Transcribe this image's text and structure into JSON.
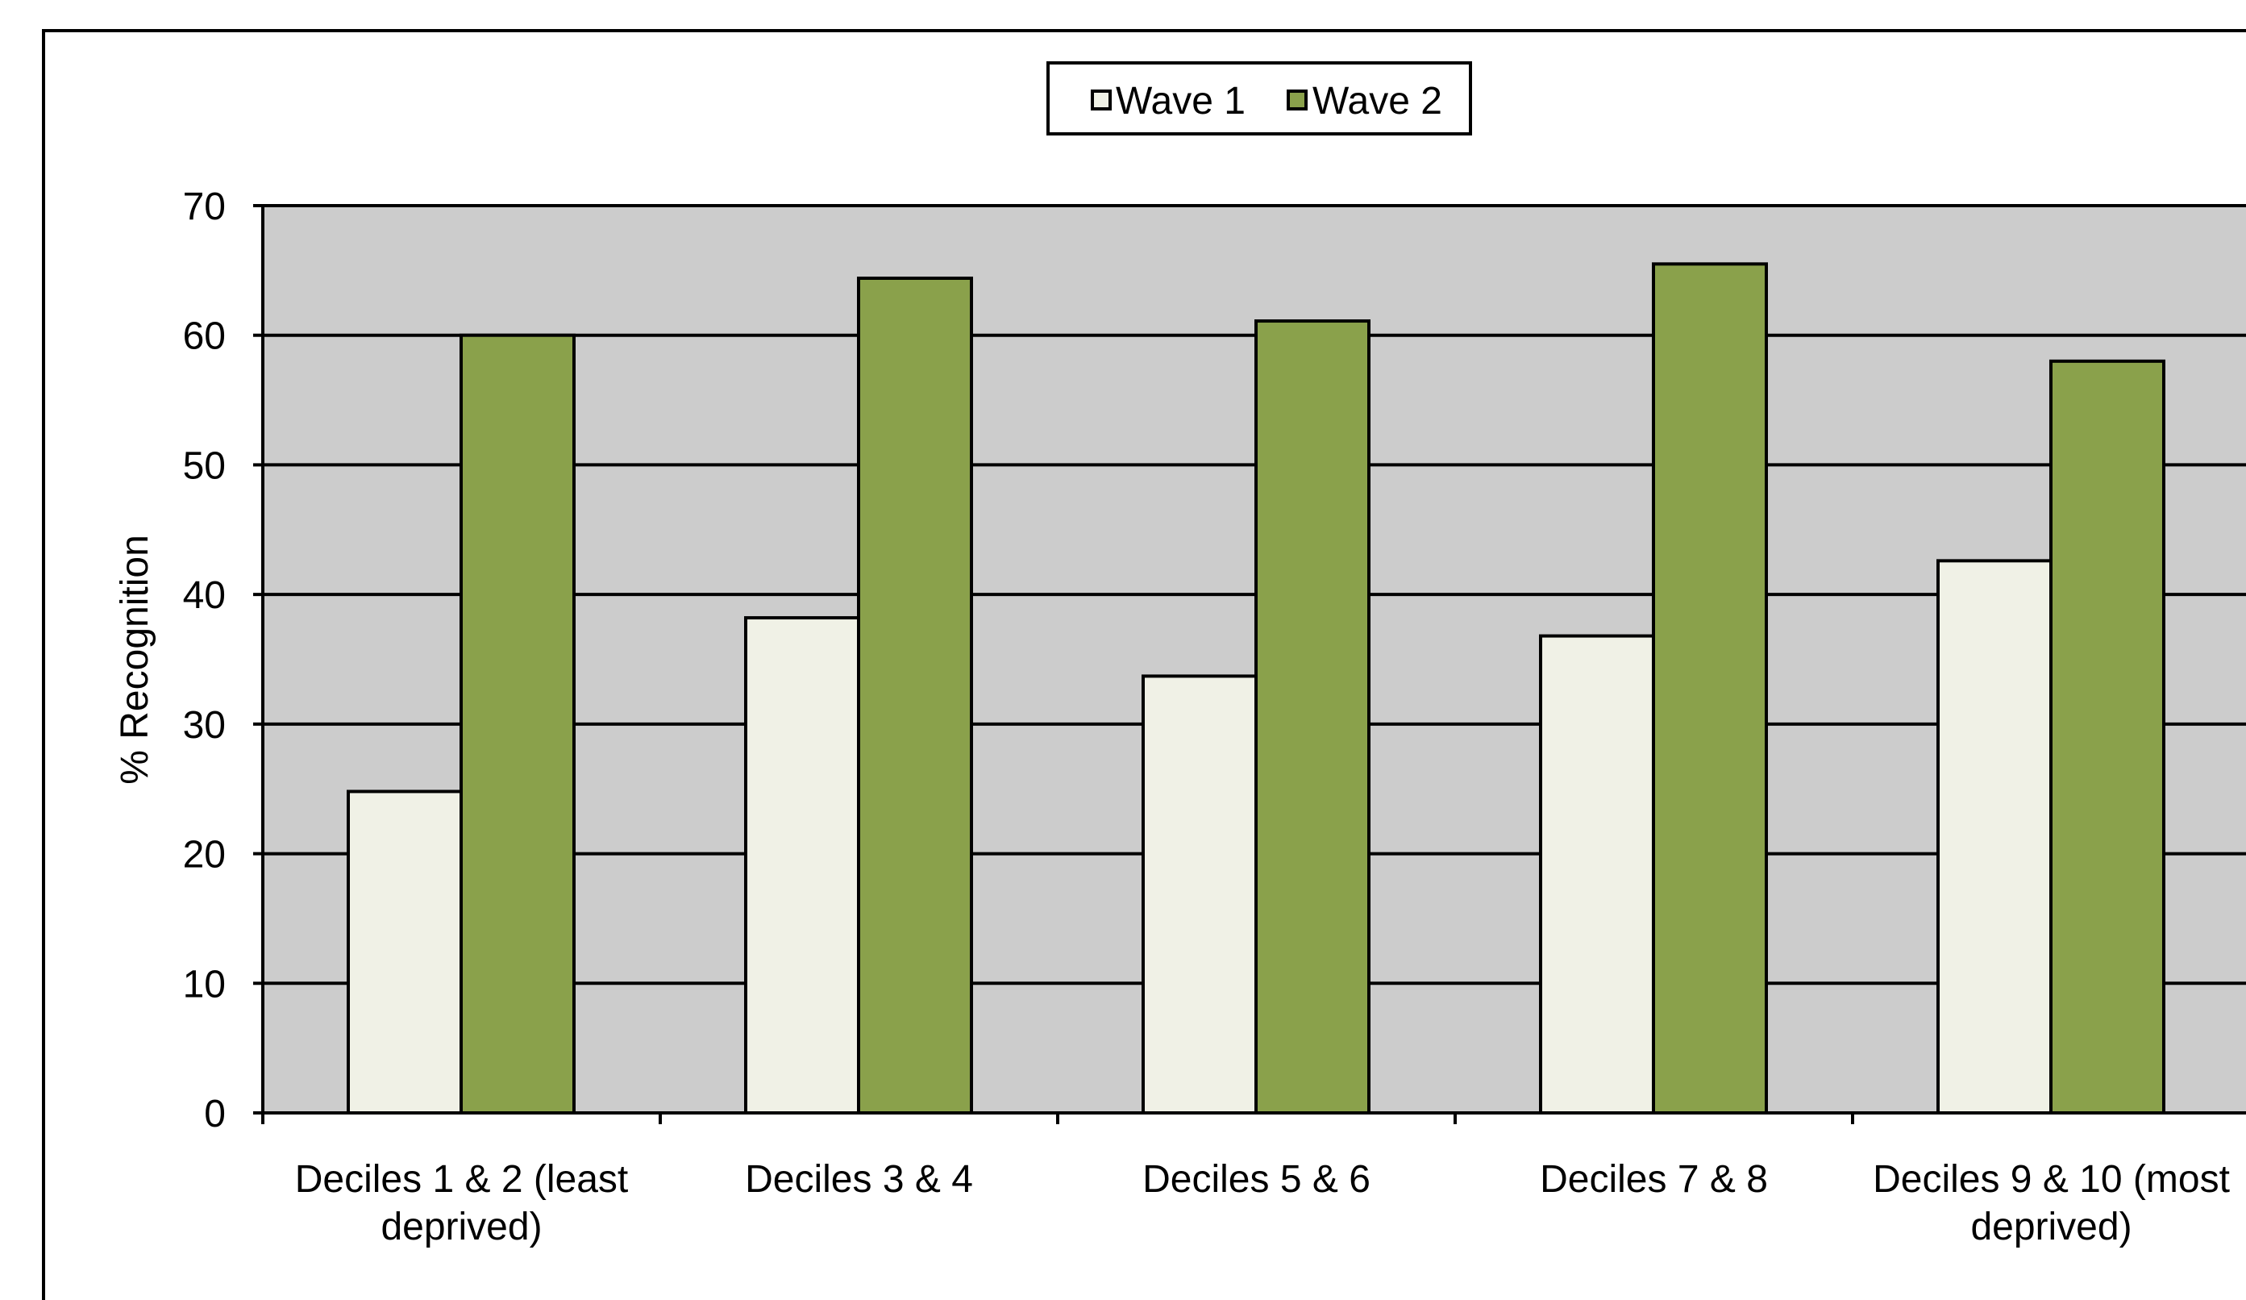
{
  "chart_data": {
    "type": "bar",
    "categories": [
      "Deciles 1 & 2 (least deprived)",
      "Deciles 3 & 4",
      "Deciles 5 & 6",
      "Deciles 7 & 8",
      "Deciles 9 & 10 (most deprived)"
    ],
    "category_label_lines": [
      [
        "Deciles 1 & 2 (least",
        "deprived)"
      ],
      [
        "Deciles 3 & 4"
      ],
      [
        "Deciles 5 & 6"
      ],
      [
        "Deciles 7 & 8"
      ],
      [
        "Deciles 9 & 10 (most",
        "deprived)"
      ]
    ],
    "series": [
      {
        "name": "Wave 1",
        "values": [
          24.8,
          38.2,
          33.7,
          36.8,
          42.6
        ],
        "color": "#F0F1E6"
      },
      {
        "name": "Wave 2",
        "values": [
          60.0,
          64.4,
          61.1,
          65.5,
          58.0
        ],
        "color": "#8AA14B"
      }
    ],
    "xlabel": "",
    "ylabel": "% Recognition",
    "ylim": [
      0,
      70
    ],
    "yticks": [
      0,
      10,
      20,
      30,
      40,
      50,
      60,
      70
    ],
    "grid": true,
    "legend_position": "top-center",
    "plot_background": "#CCCCCC"
  }
}
